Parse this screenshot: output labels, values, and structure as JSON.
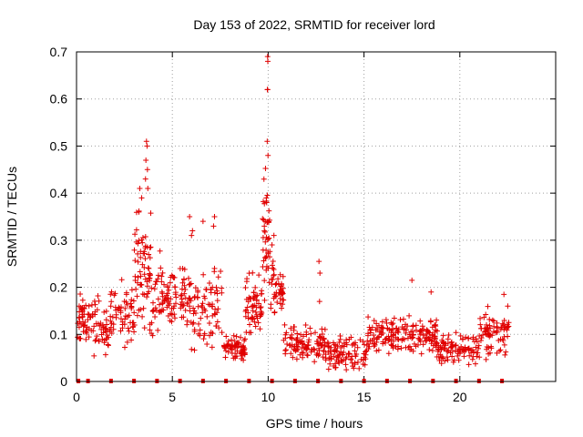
{
  "chart_data": {
    "type": "scatter",
    "title": "Day 153 of 2022, SRMTID for receiver lord",
    "xlabel": "GPS time / hours",
    "ylabel": "SRMTID / TECUs",
    "xlim": [
      0,
      25
    ],
    "ylim": [
      0,
      0.7
    ],
    "xticks": [
      "0",
      "5",
      "10",
      "15",
      "20"
    ],
    "yticks": [
      "0",
      "0.1",
      "0.2",
      "0.3",
      "0.4",
      "0.5",
      "0.6",
      "0.7"
    ],
    "grid": true,
    "marker": "+",
    "color": "#e00000",
    "gap_markers_x": [
      0.1,
      0.6,
      1.8,
      3.0,
      4.2,
      5.4,
      6.6,
      7.8,
      9.0,
      10.2,
      11.4,
      12.6,
      13.8,
      15.0,
      16.2,
      17.4,
      18.6,
      19.8,
      21.0,
      22.2
    ],
    "clusters": [
      {
        "x_start": 0.0,
        "x_end": 0.6,
        "center": 0.13,
        "spread": 0.06,
        "count": 40
      },
      {
        "x_start": 0.6,
        "x_end": 1.8,
        "center": 0.12,
        "spread": 0.07,
        "count": 60
      },
      {
        "x_start": 1.8,
        "x_end": 3.0,
        "center": 0.14,
        "spread": 0.08,
        "count": 55
      },
      {
        "x_start": 3.0,
        "x_end": 3.9,
        "center": 0.24,
        "spread": 0.14,
        "count": 70
      },
      {
        "x_start": 3.9,
        "x_end": 5.2,
        "center": 0.18,
        "spread": 0.09,
        "count": 75
      },
      {
        "x_start": 5.4,
        "x_end": 6.2,
        "center": 0.17,
        "spread": 0.1,
        "count": 50
      },
      {
        "x_start": 6.2,
        "x_end": 7.6,
        "center": 0.16,
        "spread": 0.1,
        "count": 65
      },
      {
        "x_start": 7.7,
        "x_end": 8.8,
        "center": 0.07,
        "spread": 0.03,
        "count": 70
      },
      {
        "x_start": 8.8,
        "x_end": 9.7,
        "center": 0.15,
        "spread": 0.08,
        "count": 60
      },
      {
        "x_start": 9.7,
        "x_end": 10.1,
        "center": 0.3,
        "spread": 0.15,
        "count": 40
      },
      {
        "x_start": 10.1,
        "x_end": 10.8,
        "center": 0.2,
        "spread": 0.07,
        "count": 45
      },
      {
        "x_start": 10.8,
        "x_end": 13.0,
        "center": 0.08,
        "spread": 0.04,
        "count": 110
      },
      {
        "x_start": 13.0,
        "x_end": 15.2,
        "center": 0.06,
        "spread": 0.04,
        "count": 100
      },
      {
        "x_start": 15.2,
        "x_end": 17.0,
        "center": 0.1,
        "spread": 0.05,
        "count": 90
      },
      {
        "x_start": 17.0,
        "x_end": 18.8,
        "center": 0.1,
        "spread": 0.05,
        "count": 90
      },
      {
        "x_start": 18.8,
        "x_end": 21.0,
        "center": 0.07,
        "spread": 0.04,
        "count": 100
      },
      {
        "x_start": 21.0,
        "x_end": 22.6,
        "center": 0.1,
        "spread": 0.05,
        "count": 80
      }
    ],
    "peaks": [
      {
        "x": 3.65,
        "y": 0.51
      },
      {
        "x": 3.68,
        "y": 0.5
      },
      {
        "x": 3.62,
        "y": 0.47
      },
      {
        "x": 3.7,
        "y": 0.45
      },
      {
        "x": 3.6,
        "y": 0.43
      },
      {
        "x": 3.72,
        "y": 0.41
      },
      {
        "x": 3.3,
        "y": 0.41
      },
      {
        "x": 3.25,
        "y": 0.36
      },
      {
        "x": 3.4,
        "y": 0.39
      },
      {
        "x": 5.9,
        "y": 0.35
      },
      {
        "x": 6.6,
        "y": 0.34
      },
      {
        "x": 7.2,
        "y": 0.35
      },
      {
        "x": 7.15,
        "y": 0.33
      },
      {
        "x": 6.05,
        "y": 0.32
      },
      {
        "x": 6.0,
        "y": 0.31
      },
      {
        "x": 9.97,
        "y": 0.69
      },
      {
        "x": 9.98,
        "y": 0.68
      },
      {
        "x": 9.96,
        "y": 0.62
      },
      {
        "x": 9.97,
        "y": 0.62
      },
      {
        "x": 9.95,
        "y": 0.51
      },
      {
        "x": 9.99,
        "y": 0.48
      },
      {
        "x": 9.9,
        "y": 0.39
      },
      {
        "x": 9.92,
        "y": 0.38
      },
      {
        "x": 9.85,
        "y": 0.34
      },
      {
        "x": 9.8,
        "y": 0.33
      },
      {
        "x": 10.3,
        "y": 0.31
      },
      {
        "x": 10.2,
        "y": 0.29
      },
      {
        "x": 12.65,
        "y": 0.255
      },
      {
        "x": 12.7,
        "y": 0.23
      },
      {
        "x": 12.68,
        "y": 0.17
      },
      {
        "x": 17.5,
        "y": 0.215
      },
      {
        "x": 18.5,
        "y": 0.19
      },
      {
        "x": 22.3,
        "y": 0.185
      },
      {
        "x": 22.5,
        "y": 0.16
      }
    ]
  }
}
